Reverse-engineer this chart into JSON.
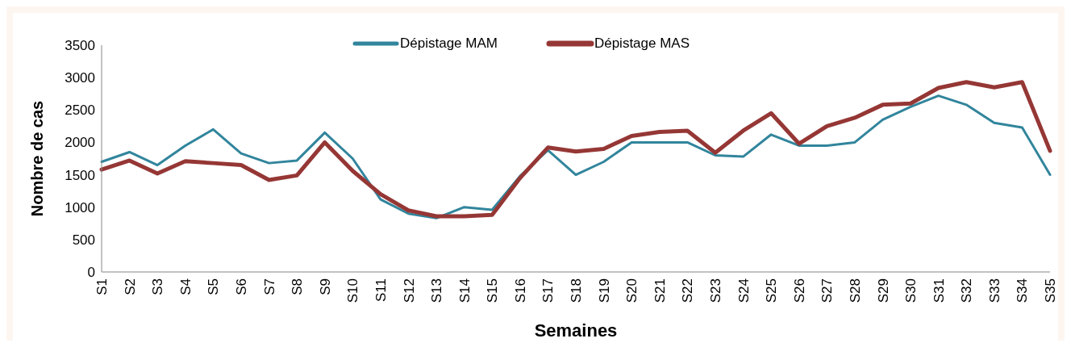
{
  "chart_data": {
    "type": "line",
    "xlabel": "Semaines",
    "ylabel": "Nombre de cas",
    "categories": [
      "S1",
      "S2",
      "S3",
      "S4",
      "S5",
      "S6",
      "S7",
      "S8",
      "S9",
      "S10",
      "S11",
      "S12",
      "S13",
      "S14",
      "S15",
      "S16",
      "S17",
      "S18",
      "S19",
      "S20",
      "S21",
      "S22",
      "S23",
      "S24",
      "S25",
      "S26",
      "S27",
      "S28",
      "S29",
      "S30",
      "S31",
      "S32",
      "S33",
      "S34",
      "S35"
    ],
    "series": [
      {
        "name": "Dépistage MAM",
        "color": "#31859c",
        "values": [
          1700,
          1850,
          1650,
          1950,
          2200,
          1830,
          1680,
          1720,
          2150,
          1750,
          1120,
          900,
          830,
          1000,
          960,
          1480,
          1880,
          1500,
          1700,
          2000,
          2000,
          2000,
          1800,
          1780,
          2120,
          1950,
          1950,
          2000,
          2350,
          2550,
          2720,
          2580,
          2300,
          2230,
          1500
        ]
      },
      {
        "name": "Dépistage MAS",
        "color": "#953735",
        "values": [
          1580,
          1720,
          1520,
          1710,
          1680,
          1650,
          1420,
          1490,
          2000,
          1560,
          1200,
          950,
          860,
          860,
          880,
          1450,
          1920,
          1860,
          1900,
          2100,
          2160,
          2180,
          1840,
          2180,
          2450,
          1980,
          2250,
          2380,
          2580,
          2600,
          2840,
          2930,
          2850,
          2930,
          1870
        ]
      }
    ],
    "ylim": [
      0,
      3500
    ],
    "yticks": [
      0,
      500,
      1000,
      1500,
      2000,
      2500,
      3000,
      3500
    ],
    "grid": false,
    "legend": "top",
    "marker": "none",
    "line_style": "solid"
  }
}
